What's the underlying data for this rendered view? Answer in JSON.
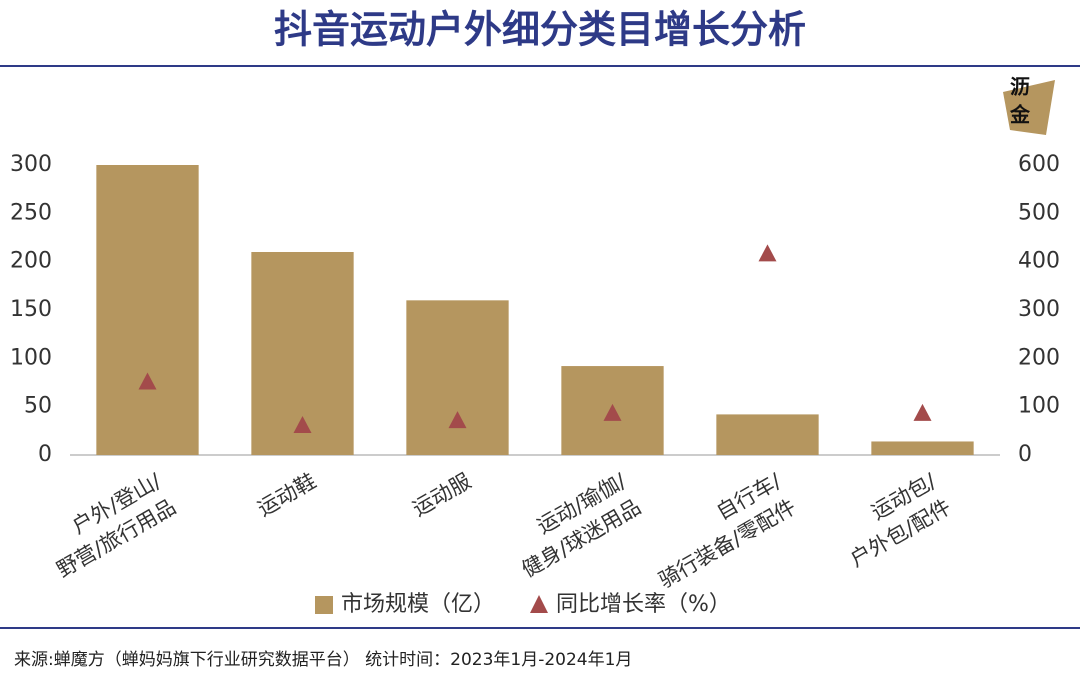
{
  "chart_data": {
    "type": "bar",
    "title": "抖音运动户外细分类目增长分析",
    "categories": [
      [
        "户外/登山/",
        "野营/旅行用品"
      ],
      [
        "运动鞋"
      ],
      [
        "运动服"
      ],
      [
        "运动/瑜伽/",
        "健身/球迷用品"
      ],
      [
        "自行车/",
        "骑行装备/零配件"
      ],
      [
        "运动包/",
        "户外包/配件"
      ]
    ],
    "series": [
      {
        "name": "市场规模（亿）",
        "color": "#b5965f",
        "mark": "bar",
        "values": [
          300,
          210,
          160,
          92,
          42,
          14
        ]
      },
      {
        "name": "同比增长率（%）",
        "color": "#a34b4b",
        "mark": "triangle",
        "axis": "y2",
        "values": [
          150,
          60,
          70,
          85,
          415,
          85
        ]
      }
    ],
    "ylim": [
      0,
      300
    ],
    "yticks": [
      0,
      50,
      100,
      150,
      200,
      250,
      300
    ],
    "y2lim": [
      0,
      600
    ],
    "y2ticks": [
      0,
      100,
      200,
      300,
      400,
      500,
      600
    ],
    "grid": false,
    "logo": [
      "沥",
      "金"
    ],
    "footer": "来源:蝉魔方（蝉妈妈旗下行业研究数据平台）  统计时间：2023年1月-2024年1月"
  }
}
